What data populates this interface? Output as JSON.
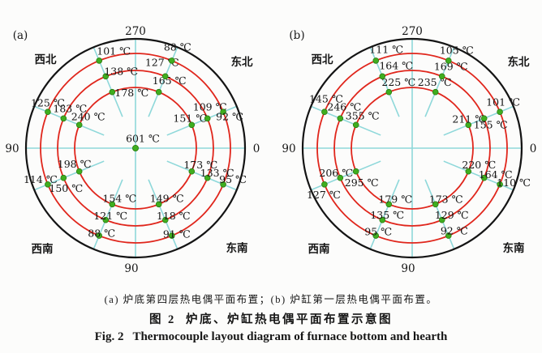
{
  "figure": {
    "caption_line1": "(a) 炉底第四层热电偶平面布置；(b) 炉缸第一层热电偶平面布置。",
    "caption_line2": "图 2  炉底、炉缸热电偶平面布置示意图",
    "caption_line3": "Fig. 2   Thermocouple layout diagram of furnace bottom and hearth"
  },
  "colors": {
    "outer_circle": "#141414",
    "ring_red": "#e0261c",
    "spoke_cyan": "#8ed8da",
    "dot_green": "#3fae1f",
    "dot_green_edge": "#2a7a10",
    "text": "#161616"
  },
  "unit": "℃",
  "chart_data": [
    {
      "panel": "(a)",
      "title": "炉底第四层热电偶平面布置",
      "type": "scatter",
      "subtype": "polar-thermocouple-layout",
      "rings_red": 3,
      "axis_labels": {
        "top": "270",
        "left": "90",
        "right": "0",
        "bottom": "90"
      },
      "corner_labels": {
        "nw": "西北",
        "ne": "东北",
        "sw": "西南",
        "se": "东南"
      },
      "center_value": 601,
      "spokes": [
        {
          "direction": "NNW",
          "temps_inner_to_outer": [
            178,
            138,
            101
          ]
        },
        {
          "direction": "NNE",
          "temps_inner_to_outer": [
            165,
            127,
            88
          ]
        },
        {
          "direction": "WNW",
          "temps_inner_to_outer": [
            240,
            183,
            125
          ]
        },
        {
          "direction": "ENE",
          "temps_inner_to_outer": [
            151,
            109,
            92
          ]
        },
        {
          "direction": "WSW",
          "temps_inner_to_outer": [
            198,
            150,
            114
          ]
        },
        {
          "direction": "SSW",
          "temps_inner_to_outer": [
            154,
            121,
            88
          ]
        },
        {
          "direction": "SSE",
          "temps_inner_to_outer": [
            149,
            118,
            91
          ]
        },
        {
          "direction": "ESE",
          "temps_inner_to_outer": [
            173,
            133,
            95
          ]
        }
      ]
    },
    {
      "panel": "(b)",
      "title": "炉缸第一层热电偶平面布置",
      "type": "scatter",
      "subtype": "polar-thermocouple-layout",
      "rings_red": 3,
      "axis_labels": {
        "top": "270",
        "left": "90",
        "right": "0",
        "bottom": "90"
      },
      "corner_labels": {
        "nw": "西北",
        "ne": "东北",
        "sw": "西南",
        "se": "东南"
      },
      "center_value": null,
      "spokes": [
        {
          "direction": "NNW",
          "temps_inner_to_outer": [
            225,
            164,
            111
          ]
        },
        {
          "direction": "NNE",
          "temps_inner_to_outer": [
            235,
            169,
            105
          ]
        },
        {
          "direction": "WNW",
          "temps_inner_to_outer": [
            355,
            246,
            145
          ]
        },
        {
          "direction": "ENE",
          "temps_inner_to_outer": [
            211,
            155,
            101
          ]
        },
        {
          "direction": "WSW",
          "temps_inner_to_outer": [
            295,
            206,
            127
          ]
        },
        {
          "direction": "SSW",
          "temps_inner_to_outer": [
            179,
            135,
            95
          ]
        },
        {
          "direction": "SSE",
          "temps_inner_to_outer": [
            173,
            129,
            92
          ]
        },
        {
          "direction": "ESE",
          "temps_inner_to_outer": [
            220,
            164,
            110
          ]
        }
      ]
    }
  ]
}
